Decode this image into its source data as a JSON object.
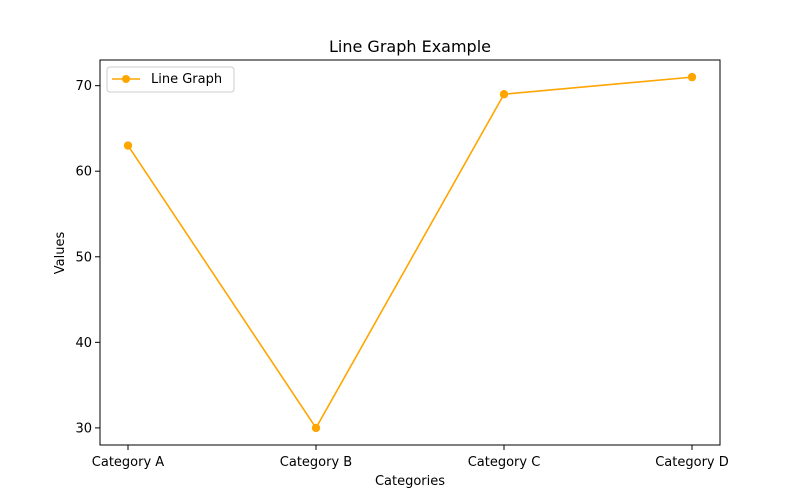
{
  "chart_data": {
    "type": "line",
    "title": "Line Graph Example",
    "xlabel": "Categories",
    "ylabel": "Values",
    "categories": [
      "Category A",
      "Category B",
      "Category C",
      "Category D"
    ],
    "series": [
      {
        "name": "Line Graph",
        "values": [
          63,
          30,
          69,
          71
        ],
        "color": "#ffa500",
        "marker": "circle"
      }
    ],
    "ylim": [
      28,
      73
    ],
    "yticks": [
      30,
      40,
      50,
      60,
      70
    ],
    "grid": false,
    "legend": "top-left"
  }
}
